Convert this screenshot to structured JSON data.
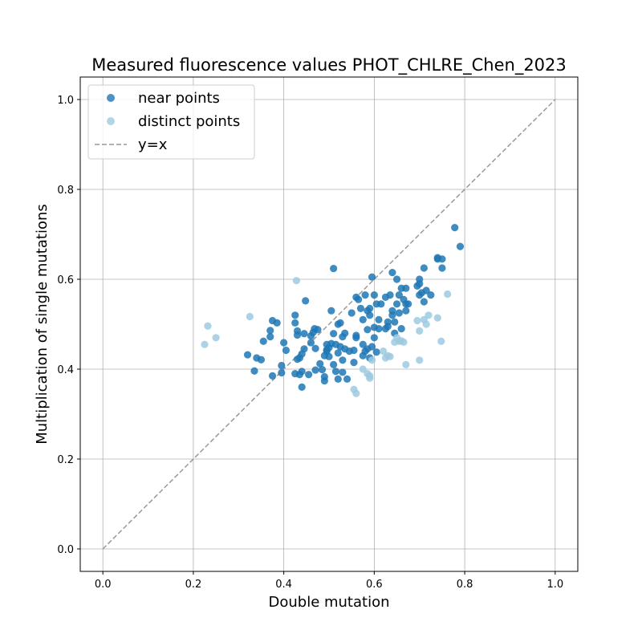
{
  "chart_data": {
    "type": "scatter",
    "title": "Measured fluorescence values PHOT_CHLRE_Chen_2023",
    "xlabel": "Double mutation",
    "ylabel": "Multiplication of single mutations",
    "xlim": [
      -0.05,
      1.05
    ],
    "ylim": [
      -0.05,
      1.05
    ],
    "xticks": [
      "0.0",
      "0.2",
      "0.4",
      "0.6",
      "0.8",
      "1.0"
    ],
    "yticks": [
      "0.0",
      "0.2",
      "0.4",
      "0.6",
      "0.8",
      "1.0"
    ],
    "grid": true,
    "legend_position": "top-left",
    "colors": {
      "near": "#1f77b4",
      "distinct": "#9ecae1",
      "diagonal": "#999999"
    },
    "reference_line": {
      "name": "y=x",
      "from": [
        0,
        0
      ],
      "to": [
        1,
        1
      ],
      "style": "dashed"
    },
    "series": [
      {
        "name": "near points",
        "points": [
          [
            0.32,
            0.432
          ],
          [
            0.335,
            0.396
          ],
          [
            0.34,
            0.425
          ],
          [
            0.35,
            0.421
          ],
          [
            0.355,
            0.462
          ],
          [
            0.37,
            0.486
          ],
          [
            0.37,
            0.472
          ],
          [
            0.375,
            0.385
          ],
          [
            0.375,
            0.508
          ],
          [
            0.385,
            0.503
          ],
          [
            0.395,
            0.392
          ],
          [
            0.395,
            0.408
          ],
          [
            0.4,
            0.459
          ],
          [
            0.405,
            0.442
          ],
          [
            0.425,
            0.52
          ],
          [
            0.425,
            0.503
          ],
          [
            0.425,
            0.39
          ],
          [
            0.43,
            0.485
          ],
          [
            0.43,
            0.476
          ],
          [
            0.43,
            0.422
          ],
          [
            0.435,
            0.388
          ],
          [
            0.435,
            0.425
          ],
          [
            0.44,
            0.36
          ],
          [
            0.44,
            0.395
          ],
          [
            0.44,
            0.434
          ],
          [
            0.445,
            0.445
          ],
          [
            0.445,
            0.479
          ],
          [
            0.448,
            0.552
          ],
          [
            0.455,
            0.388
          ],
          [
            0.46,
            0.474
          ],
          [
            0.46,
            0.459
          ],
          [
            0.465,
            0.482
          ],
          [
            0.468,
            0.49
          ],
          [
            0.47,
            0.398
          ],
          [
            0.47,
            0.446
          ],
          [
            0.475,
            0.488
          ],
          [
            0.48,
            0.412
          ],
          [
            0.485,
            0.399
          ],
          [
            0.49,
            0.383
          ],
          [
            0.49,
            0.374
          ],
          [
            0.49,
            0.43
          ],
          [
            0.495,
            0.443
          ],
          [
            0.495,
            0.455
          ],
          [
            0.495,
            0.44
          ],
          [
            0.5,
            0.448
          ],
          [
            0.5,
            0.428
          ],
          [
            0.505,
            0.457
          ],
          [
            0.505,
            0.53
          ],
          [
            0.51,
            0.624
          ],
          [
            0.51,
            0.479
          ],
          [
            0.51,
            0.41
          ],
          [
            0.515,
            0.455
          ],
          [
            0.515,
            0.395
          ],
          [
            0.52,
            0.5
          ],
          [
            0.52,
            0.436
          ],
          [
            0.52,
            0.378
          ],
          [
            0.525,
            0.503
          ],
          [
            0.525,
            0.45
          ],
          [
            0.53,
            0.42
          ],
          [
            0.53,
            0.393
          ],
          [
            0.53,
            0.472
          ],
          [
            0.535,
            0.48
          ],
          [
            0.535,
            0.445
          ],
          [
            0.54,
            0.378
          ],
          [
            0.545,
            0.44
          ],
          [
            0.55,
            0.525
          ],
          [
            0.555,
            0.415
          ],
          [
            0.555,
            0.442
          ],
          [
            0.56,
            0.475
          ],
          [
            0.56,
            0.47
          ],
          [
            0.56,
            0.56
          ],
          [
            0.565,
            0.555
          ],
          [
            0.57,
            0.535
          ],
          [
            0.575,
            0.51
          ],
          [
            0.575,
            0.455
          ],
          [
            0.575,
            0.43
          ],
          [
            0.58,
            0.565
          ],
          [
            0.58,
            0.44
          ],
          [
            0.585,
            0.445
          ],
          [
            0.585,
            0.53
          ],
          [
            0.585,
            0.488
          ],
          [
            0.59,
            0.535
          ],
          [
            0.59,
            0.52
          ],
          [
            0.59,
            0.425
          ],
          [
            0.595,
            0.605
          ],
          [
            0.595,
            0.45
          ],
          [
            0.6,
            0.565
          ],
          [
            0.6,
            0.493
          ],
          [
            0.6,
            0.47
          ],
          [
            0.605,
            0.545
          ],
          [
            0.605,
            0.438
          ],
          [
            0.61,
            0.51
          ],
          [
            0.61,
            0.49
          ],
          [
            0.615,
            0.545
          ],
          [
            0.625,
            0.56
          ],
          [
            0.625,
            0.49
          ],
          [
            0.63,
            0.505
          ],
          [
            0.63,
            0.495
          ],
          [
            0.635,
            0.565
          ],
          [
            0.64,
            0.53
          ],
          [
            0.64,
            0.615
          ],
          [
            0.64,
            0.52
          ],
          [
            0.645,
            0.48
          ],
          [
            0.645,
            0.505
          ],
          [
            0.65,
            0.6
          ],
          [
            0.65,
            0.545
          ],
          [
            0.655,
            0.565
          ],
          [
            0.655,
            0.525
          ],
          [
            0.66,
            0.58
          ],
          [
            0.66,
            0.49
          ],
          [
            0.665,
            0.555
          ],
          [
            0.67,
            0.53
          ],
          [
            0.67,
            0.545
          ],
          [
            0.67,
            0.58
          ],
          [
            0.675,
            0.545
          ],
          [
            0.695,
            0.585
          ],
          [
            0.7,
            0.6
          ],
          [
            0.7,
            0.59
          ],
          [
            0.7,
            0.565
          ],
          [
            0.705,
            0.57
          ],
          [
            0.71,
            0.625
          ],
          [
            0.71,
            0.55
          ],
          [
            0.715,
            0.575
          ],
          [
            0.725,
            0.565
          ],
          [
            0.74,
            0.645
          ],
          [
            0.74,
            0.648
          ],
          [
            0.75,
            0.645
          ],
          [
            0.75,
            0.625
          ],
          [
            0.778,
            0.715
          ],
          [
            0.79,
            0.673
          ]
        ]
      },
      {
        "name": "distinct points",
        "points": [
          [
            0.225,
            0.455
          ],
          [
            0.232,
            0.496
          ],
          [
            0.25,
            0.47
          ],
          [
            0.325,
            0.517
          ],
          [
            0.428,
            0.597
          ],
          [
            0.555,
            0.355
          ],
          [
            0.56,
            0.346
          ],
          [
            0.575,
            0.4
          ],
          [
            0.585,
            0.39
          ],
          [
            0.59,
            0.385
          ],
          [
            0.59,
            0.38
          ],
          [
            0.595,
            0.42
          ],
          [
            0.62,
            0.44
          ],
          [
            0.625,
            0.425
          ],
          [
            0.63,
            0.43
          ],
          [
            0.635,
            0.428
          ],
          [
            0.645,
            0.46
          ],
          [
            0.65,
            0.47
          ],
          [
            0.655,
            0.462
          ],
          [
            0.66,
            0.463
          ],
          [
            0.665,
            0.46
          ],
          [
            0.67,
            0.41
          ],
          [
            0.695,
            0.508
          ],
          [
            0.7,
            0.485
          ],
          [
            0.7,
            0.42
          ],
          [
            0.71,
            0.51
          ],
          [
            0.715,
            0.5
          ],
          [
            0.72,
            0.52
          ],
          [
            0.74,
            0.514
          ],
          [
            0.748,
            0.462
          ],
          [
            0.762,
            0.567
          ]
        ]
      }
    ]
  }
}
